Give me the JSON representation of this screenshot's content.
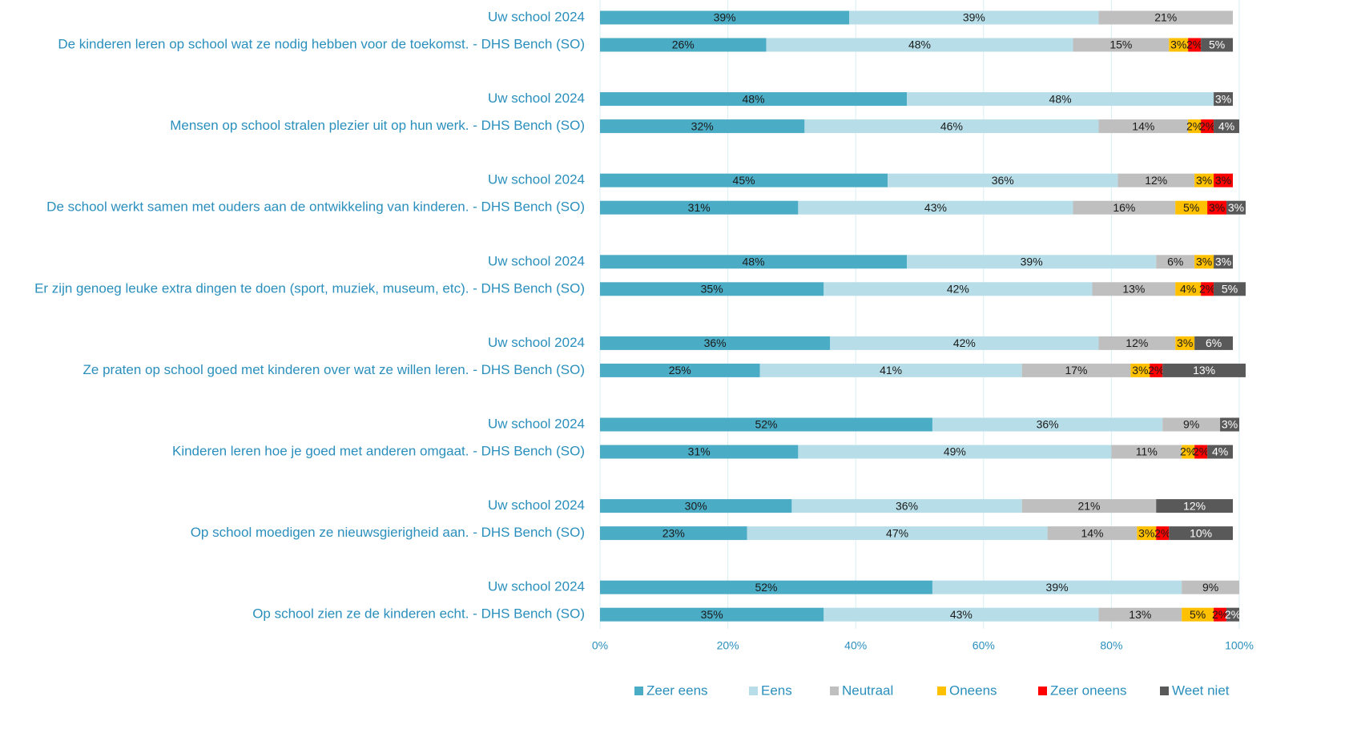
{
  "chart_data": {
    "type": "stacked-bar-horizontal",
    "categories": [
      "Uw school 2024",
      "De kinderen leren op school wat ze nodig hebben voor de toekomst.  - DHS Bench (SO)",
      "Uw school 2024",
      "Mensen op school stralen plezier uit op hun werk.  - DHS Bench (SO)",
      "Uw school 2024",
      "De school werkt samen met ouders aan de ontwikkeling van kinderen. - DHS Bench (SO)",
      "Uw school 2024",
      "Er zijn genoeg leuke extra dingen te doen (sport, muziek, museum, etc). - DHS Bench (SO)",
      "Uw school 2024",
      "Ze praten op school goed met kinderen over wat ze willen leren. - DHS Bench (SO)",
      "Uw school 2024",
      "Kinderen leren hoe je goed met anderen omgaat. - DHS Bench (SO)",
      "Uw school 2024",
      "Op school moedigen ze nieuwsgierigheid aan.  - DHS Bench (SO)",
      "Uw school 2024",
      "Op school zien ze de kinderen echt. - DHS Bench (SO)"
    ],
    "series": [
      {
        "name": "Zeer eens",
        "color": "#4bacc6",
        "values": [
          39,
          26,
          48,
          32,
          45,
          31,
          48,
          35,
          36,
          25,
          52,
          31,
          30,
          23,
          52,
          35
        ],
        "value_labels": [
          "39%",
          "26%",
          "48%",
          "32%",
          "45%",
          "31%",
          "48%",
          "35%",
          "36%",
          "25%",
          "52%",
          "31%",
          "30%",
          "23%",
          "52%",
          "35%"
        ]
      },
      {
        "name": "Eens",
        "color": "#b7dee8",
        "values": [
          39,
          48,
          48,
          46,
          36,
          43,
          39,
          42,
          42,
          41,
          36,
          49,
          36,
          47,
          39,
          43
        ],
        "value_labels": [
          "39%",
          "48%",
          "48%",
          "46%",
          "36%",
          "43%",
          "39%",
          "42%",
          "42%",
          "41%",
          "36%",
          "49%",
          "36%",
          "47%",
          "39%",
          "43%"
        ]
      },
      {
        "name": "Neutraal",
        "color": "#bfbfbf",
        "values": [
          21,
          15,
          0,
          14,
          12,
          16,
          6,
          13,
          12,
          17,
          9,
          11,
          21,
          14,
          9,
          13
        ],
        "value_labels": [
          "21%",
          "15%",
          null,
          "14%",
          "12%",
          "16%",
          "6%",
          "13%",
          "12%",
          "17%",
          "9%",
          "11%",
          "21%",
          "14%",
          "9%",
          "13%"
        ]
      },
      {
        "name": "Oneens",
        "color": "#ffc000",
        "values": [
          0,
          3,
          0,
          2,
          3,
          5,
          3,
          4,
          3,
          3,
          0,
          2,
          0,
          3,
          0,
          5
        ],
        "value_labels": [
          null,
          "3%",
          null,
          "2%",
          "3%",
          "5%",
          "3%",
          "4%",
          "3%",
          "3%",
          null,
          "2%",
          null,
          "3%",
          null,
          "5%"
        ]
      },
      {
        "name": "Zeer oneens",
        "color": "#ff0000",
        "values": [
          0,
          2,
          0,
          2,
          3,
          3,
          0,
          2,
          0,
          2,
          0,
          2,
          0,
          2,
          0,
          2
        ],
        "value_labels": [
          null,
          "2%",
          null,
          "2%",
          "3%",
          "3%",
          null,
          "2%",
          null,
          "2%",
          null,
          "2%",
          null,
          "2%",
          null,
          "2%"
        ]
      },
      {
        "name": "Weet niet",
        "color": "#595959",
        "values": [
          0,
          5,
          3,
          4,
          0,
          3,
          3,
          5,
          6,
          13,
          3,
          4,
          12,
          10,
          0,
          2
        ],
        "value_labels": [
          null,
          "5%",
          "3%",
          "4%",
          null,
          "3%",
          "3%",
          "5%",
          "6%",
          "13%",
          "3%",
          "4%",
          "12%",
          "10%",
          null,
          "2%"
        ]
      }
    ],
    "xlim": [
      0,
      100
    ],
    "xticks": [
      {
        "value": 0,
        "label": "0%"
      },
      {
        "value": 20,
        "label": "20%"
      },
      {
        "value": 40,
        "label": "40%"
      },
      {
        "value": 60,
        "label": "60%"
      },
      {
        "value": 80,
        "label": "80%"
      },
      {
        "value": 100,
        "label": "100%"
      }
    ],
    "grid": true,
    "legend": "bottom"
  }
}
